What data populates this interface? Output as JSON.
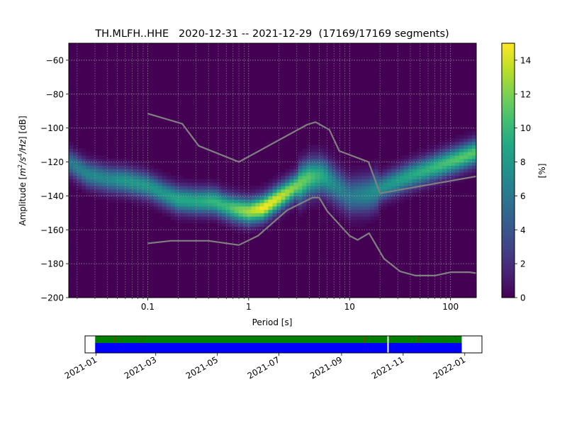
{
  "chart_data": [
    {
      "type": "heatmap",
      "title": "TH.MLFH..HHE   2020-12-31 -- 2021-12-29  (17169/17169 segments)",
      "xlabel": "Period [s]",
      "ylabel_text": "Amplitude [",
      "ylabel_unit_m": "m",
      "ylabel_sup1": "2",
      "ylabel_unit_s": "/s",
      "ylabel_sup2": "4",
      "ylabel_unit_hz": "/Hz",
      "ylabel_tail": "] [dB]",
      "x_scale": "log",
      "xlim": [
        0.0165,
        180
      ],
      "ylim": [
        -200,
        -50
      ],
      "xticks": [
        {
          "value": 0.1,
          "label": "0.1"
        },
        {
          "value": 1,
          "label": "1"
        },
        {
          "value": 10,
          "label": "10"
        },
        {
          "value": 100,
          "label": "100"
        }
      ],
      "yticks": [
        {
          "value": -60,
          "label": "−60"
        },
        {
          "value": -80,
          "label": "−80"
        },
        {
          "value": -100,
          "label": "−100"
        },
        {
          "value": -120,
          "label": "−120"
        },
        {
          "value": -140,
          "label": "−140"
        },
        {
          "value": -160,
          "label": "−160"
        },
        {
          "value": -180,
          "label": "−180"
        },
        {
          "value": -200,
          "label": "−200"
        }
      ],
      "grid": true,
      "colorbar": {
        "label": "[%]",
        "min": 0,
        "max": 15,
        "ticks": [
          {
            "value": 0,
            "label": "0"
          },
          {
            "value": 2,
            "label": "2"
          },
          {
            "value": 4,
            "label": "4"
          },
          {
            "value": 6,
            "label": "6"
          },
          {
            "value": 8,
            "label": "8"
          },
          {
            "value": 10,
            "label": "10"
          },
          {
            "value": 12,
            "label": "12"
          },
          {
            "value": 14,
            "label": "14"
          }
        ],
        "colormap": "viridis"
      },
      "background_color": "#440154",
      "density_ridge": [
        {
          "period": 0.0165,
          "db": -120,
          "peak": 6
        },
        {
          "period": 0.025,
          "db": -127,
          "peak": 7
        },
        {
          "period": 0.04,
          "db": -130,
          "peak": 7
        },
        {
          "period": 0.06,
          "db": -131,
          "peak": 8
        },
        {
          "period": 0.1,
          "db": -134,
          "peak": 8
        },
        {
          "period": 0.15,
          "db": -139,
          "peak": 8
        },
        {
          "period": 0.2,
          "db": -142,
          "peak": 9
        },
        {
          "period": 0.3,
          "db": -143,
          "peak": 9
        },
        {
          "period": 0.45,
          "db": -143,
          "peak": 10
        },
        {
          "period": 0.6,
          "db": -146,
          "peak": 10
        },
        {
          "period": 0.8,
          "db": -148,
          "peak": 12
        },
        {
          "period": 1.0,
          "db": -149,
          "peak": 13
        },
        {
          "period": 1.4,
          "db": -147,
          "peak": 15
        },
        {
          "period": 2.0,
          "db": -141,
          "peak": 14
        },
        {
          "period": 3.0,
          "db": -134,
          "peak": 12
        },
        {
          "period": 4.0,
          "db": -129,
          "peak": 11
        },
        {
          "period": 5.5,
          "db": -128,
          "peak": 9
        },
        {
          "period": 7.0,
          "db": -133,
          "peak": 7
        },
        {
          "period": 10,
          "db": -140,
          "peak": 6
        },
        {
          "period": 15,
          "db": -139,
          "peak": 7
        },
        {
          "period": 25,
          "db": -133,
          "peak": 8
        },
        {
          "period": 40,
          "db": -128,
          "peak": 9
        },
        {
          "period": 70,
          "db": -123,
          "peak": 10
        },
        {
          "period": 120,
          "db": -118,
          "peak": 11
        },
        {
          "period": 180,
          "db": -114,
          "peak": 11
        }
      ],
      "series": [
        {
          "color": "#808080",
          "points": [
            {
              "x": 0.1,
              "y": -91.5
            },
            {
              "x": 0.22,
              "y": -97.5
            },
            {
              "x": 0.32,
              "y": -110.5
            },
            {
              "x": 0.8,
              "y": -120
            },
            {
              "x": 3.8,
              "y": -98
            },
            {
              "x": 4.6,
              "y": -96.5
            },
            {
              "x": 6.3,
              "y": -101
            },
            {
              "x": 7.9,
              "y": -113.5
            },
            {
              "x": 15.4,
              "y": -120
            },
            {
              "x": 20,
              "y": -138.5
            },
            {
              "x": 200,
              "y": -128
            }
          ]
        },
        {
          "color": "#808080",
          "points": [
            {
              "x": 0.1,
              "y": -168
            },
            {
              "x": 0.17,
              "y": -166.5
            },
            {
              "x": 0.4,
              "y": -166.5
            },
            {
              "x": 0.8,
              "y": -169
            },
            {
              "x": 1.24,
              "y": -163.5
            },
            {
              "x": 2.4,
              "y": -148.5
            },
            {
              "x": 4.3,
              "y": -141
            },
            {
              "x": 5.0,
              "y": -141
            },
            {
              "x": 6.0,
              "y": -149
            },
            {
              "x": 10,
              "y": -163.5
            },
            {
              "x": 12,
              "y": -166
            },
            {
              "x": 15.6,
              "y": -162
            },
            {
              "x": 21.9,
              "y": -177
            },
            {
              "x": 31.6,
              "y": -184.5
            },
            {
              "x": 45,
              "y": -187
            },
            {
              "x": 70,
              "y": -187
            },
            {
              "x": 101,
              "y": -185
            },
            {
              "x": 154,
              "y": -185
            },
            {
              "x": 200,
              "y": -186
            }
          ]
        }
      ]
    },
    {
      "type": "timeline",
      "xlim": [
        "2020-12-21",
        "2022-01-18"
      ],
      "data_range": [
        "2020-12-31",
        "2021-12-29"
      ],
      "xticks": [
        "2021-01",
        "2021-03",
        "2021-05",
        "2021-07",
        "2021-09",
        "2021-11",
        "2022-01"
      ],
      "top_band_color": "#008000",
      "bottom_band_color": "#0000ff",
      "gap_dates": [
        "2021-10-17"
      ],
      "red_markers": [
        "2021-01-20",
        "2021-02-15",
        "2021-02-16",
        "2021-09-12",
        "2021-09-19",
        "2021-09-24",
        "2021-11-16",
        "2021-12-11"
      ]
    }
  ]
}
